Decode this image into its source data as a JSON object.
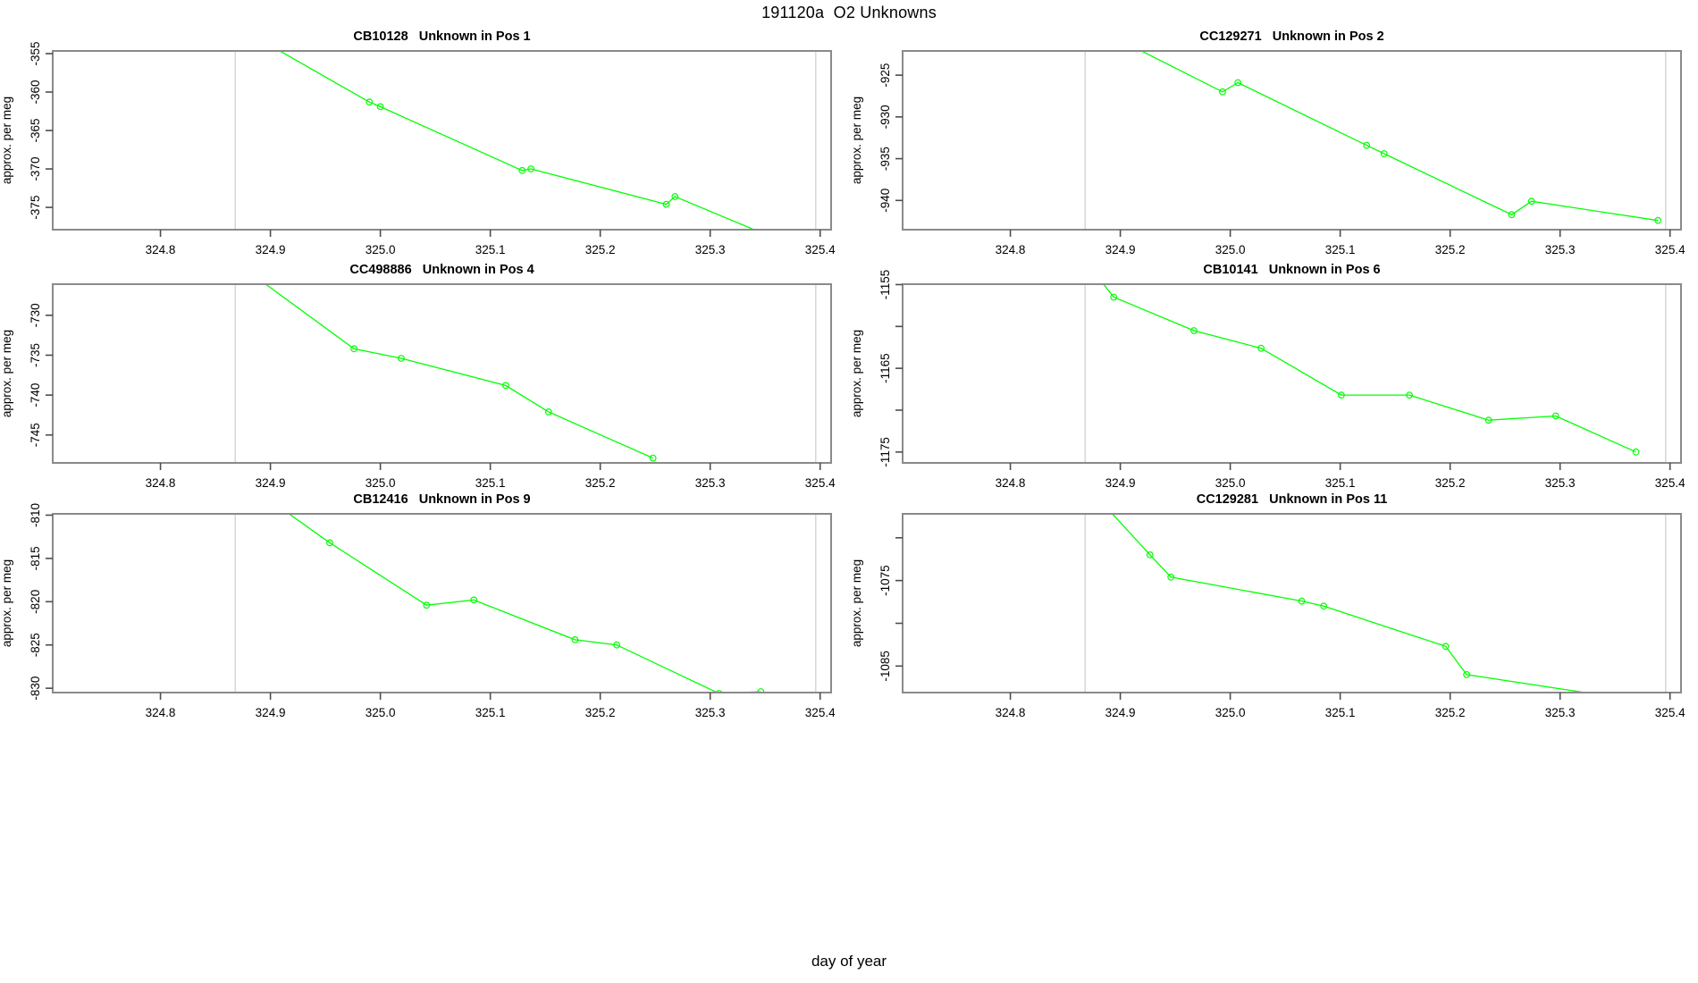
{
  "page_title": "191120a  O2 Unknowns",
  "xlabel": "day of year",
  "colors": {
    "line": "#00ff00",
    "grid": "#d4d4d4",
    "box": "#8a8a8a",
    "tick": "#4d4d4d",
    "text": "#000000",
    "background": "#ffffff"
  },
  "x_axis": {
    "xlim": [
      324.702,
      325.41
    ],
    "ticks": [
      324.8,
      324.9,
      325.0,
      325.1,
      325.2,
      325.3,
      325.4
    ],
    "tick_labels": [
      "324.8",
      "324.9",
      "325.0",
      "325.1",
      "325.2",
      "325.3",
      "325.4"
    ],
    "gridlines": [
      324.868,
      325.396
    ],
    "grid_on": "vertical-reference-lines-only"
  },
  "chart_data": [
    {
      "type": "line",
      "id": "CB10128",
      "title": "CB10128   Unknown in Pos 1",
      "ylabel": "approx. per meg",
      "ylim": [
        -377.9,
        -354.65
      ],
      "yticks": [
        {
          "v": -355,
          "label": "-355"
        },
        {
          "v": -360,
          "label": "-360"
        },
        {
          "v": -365,
          "label": "-365"
        },
        {
          "v": -370,
          "label": "-370"
        },
        {
          "v": -375,
          "label": "-375"
        }
      ],
      "points": [
        [
          324.87,
          -351.5
        ],
        [
          324.99,
          -361.3
        ],
        [
          325.0,
          -361.9
        ],
        [
          325.129,
          -370.2
        ],
        [
          325.137,
          -370.0
        ],
        [
          325.26,
          -374.6
        ],
        [
          325.268,
          -373.6
        ],
        [
          325.345,
          -378.2
        ]
      ],
      "marker_idx": [
        1,
        2,
        3,
        4,
        5,
        6
      ],
      "marker": "open-circle"
    },
    {
      "type": "line",
      "id": "CC129271",
      "title": "CC129271   Unknown in Pos 2",
      "ylabel": "approx. per meg",
      "ylim": [
        -943.5,
        -922.1
      ],
      "yticks": [
        {
          "v": -925,
          "label": "-925"
        },
        {
          "v": -930,
          "label": "-930"
        },
        {
          "v": -935,
          "label": "-935"
        },
        {
          "v": -940,
          "label": "-940"
        }
      ],
      "points": [
        [
          324.88,
          -919.5
        ],
        [
          324.993,
          -927.0
        ],
        [
          325.007,
          -925.9
        ],
        [
          325.124,
          -933.4
        ],
        [
          325.14,
          -934.4
        ],
        [
          325.256,
          -941.7
        ],
        [
          325.274,
          -940.1
        ],
        [
          325.389,
          -942.4
        ]
      ],
      "marker_idx": [
        1,
        2,
        3,
        4,
        5,
        6,
        7
      ],
      "marker": "open-circle"
    },
    {
      "type": "line",
      "id": "CC498886",
      "title": "CC498886   Unknown in Pos 4",
      "ylabel": "approx. per meg",
      "ylim": [
        -748.5,
        -726.1
      ],
      "yticks": [
        {
          "v": -730,
          "label": "-730"
        },
        {
          "v": -735,
          "label": "-735"
        },
        {
          "v": -740,
          "label": "-740"
        },
        {
          "v": -745,
          "label": "-745"
        }
      ],
      "points": [
        [
          324.86,
          -722.5
        ],
        [
          324.976,
          -734.2
        ],
        [
          325.019,
          -735.4
        ],
        [
          325.114,
          -738.8
        ],
        [
          325.153,
          -742.1
        ],
        [
          325.248,
          -747.9
        ]
      ],
      "marker_idx": [
        1,
        2,
        3,
        4,
        5
      ],
      "marker": "open-circle"
    },
    {
      "type": "line",
      "id": "CB10141",
      "title": "CB10141   Unknown in Pos 6",
      "ylabel": "approx. per meg",
      "ylim": [
        -1176.3,
        -1154.95
      ],
      "yticks": [
        {
          "v": -1155,
          "label": "-1155"
        },
        {
          "v": -1160,
          "label": ""
        },
        {
          "v": -1165,
          "label": "-1165"
        },
        {
          "v": -1170,
          "label": ""
        },
        {
          "v": -1175,
          "label": "-1175"
        }
      ],
      "points": [
        [
          324.87,
          -1152.5
        ],
        [
          324.894,
          -1156.5
        ],
        [
          324.967,
          -1160.5
        ],
        [
          325.028,
          -1162.6
        ],
        [
          325.101,
          -1168.2
        ],
        [
          325.163,
          -1168.2
        ],
        [
          325.235,
          -1171.2
        ],
        [
          325.296,
          -1170.7
        ],
        [
          325.369,
          -1175.0
        ]
      ],
      "marker_idx": [
        1,
        2,
        3,
        4,
        5,
        6,
        7,
        8
      ],
      "marker": "open-circle"
    },
    {
      "type": "line",
      "id": "CB12416",
      "title": "CB12416   Unknown in Pos 9",
      "ylabel": "approx. per meg",
      "ylim": [
        -830.5,
        -809.85
      ],
      "yticks": [
        {
          "v": -810,
          "label": "-810"
        },
        {
          "v": -815,
          "label": "-815"
        },
        {
          "v": -820,
          "label": "-820"
        },
        {
          "v": -825,
          "label": "-825"
        },
        {
          "v": -830,
          "label": "-830"
        }
      ],
      "points": [
        [
          324.88,
          -806.5
        ],
        [
          324.954,
          -813.2
        ],
        [
          325.042,
          -820.4
        ],
        [
          325.085,
          -819.8
        ],
        [
          325.177,
          -824.4
        ],
        [
          325.215,
          -825.0
        ],
        [
          325.308,
          -830.6
        ],
        [
          325.346,
          -830.4
        ]
      ],
      "marker_idx": [
        1,
        2,
        3,
        4,
        5,
        6,
        7
      ],
      "marker": "open-circle"
    },
    {
      "type": "line",
      "id": "CC129281",
      "title": "CC129281   Unknown in Pos 11",
      "ylabel": "approx. per meg",
      "ylim": [
        -1088.1,
        -1067.2
      ],
      "yticks": [
        {
          "v": -1070,
          "label": ""
        },
        {
          "v": -1075,
          "label": "-1075"
        },
        {
          "v": -1080,
          "label": ""
        },
        {
          "v": -1085,
          "label": "-1085"
        }
      ],
      "points": [
        [
          324.87,
          -1064.0
        ],
        [
          324.927,
          -1072.0
        ],
        [
          324.946,
          -1074.6
        ],
        [
          325.065,
          -1077.4
        ],
        [
          325.085,
          -1078.0
        ],
        [
          325.196,
          -1082.7
        ],
        [
          325.215,
          -1086.0
        ],
        [
          325.42,
          -1090.0
        ]
      ],
      "marker_idx": [
        1,
        2,
        3,
        4,
        5,
        6
      ],
      "marker": "open-circle"
    }
  ]
}
